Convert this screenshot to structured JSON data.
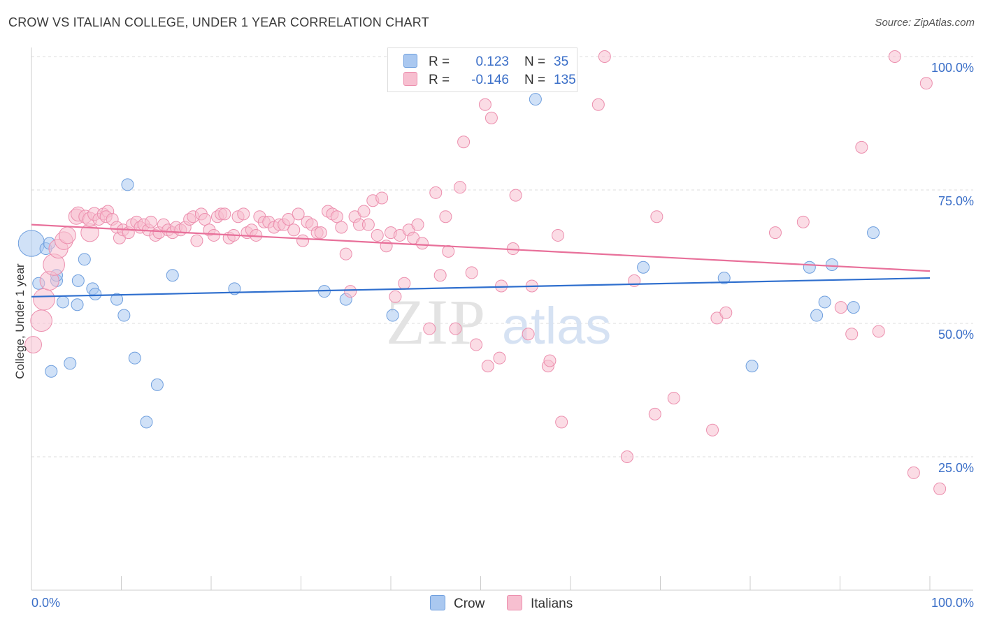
{
  "title": "CROW VS ITALIAN COLLEGE, UNDER 1 YEAR CORRELATION CHART",
  "source": "Source: ZipAtlas.com",
  "watermark": {
    "zip": "ZIP",
    "atlas": "atlas"
  },
  "legend": {
    "crow": {
      "r_label": "R =",
      "r_value": "0.123",
      "n_label": "N =",
      "n_value": "35"
    },
    "italians": {
      "r_label": "R =",
      "r_value": "-0.146",
      "n_label": "N =",
      "n_value": "135"
    }
  },
  "colors": {
    "crow_fill": "#aac8f0",
    "crow_stroke": "#6f9fde",
    "crow_line": "#2f6fce",
    "italians_fill": "#f7bfd0",
    "italians_stroke": "#ec8fae",
    "italians_line": "#e8709a",
    "axis_label": "#3b6fc8",
    "grid": "#dddddd"
  },
  "chart_data": {
    "type": "scatter",
    "title": "CROW VS ITALIAN COLLEGE, UNDER 1 YEAR CORRELATION CHART",
    "xlabel": "",
    "ylabel": "College, Under 1 year",
    "xlim": [
      0,
      100
    ],
    "ylim": [
      0,
      102
    ],
    "x_tick_labels": [
      "0.0%",
      "100.0%"
    ],
    "y_ticks": [
      25,
      50,
      75,
      100
    ],
    "y_tick_labels": [
      "25.0%",
      "50.0%",
      "75.0%",
      "100.0%"
    ],
    "grid": true,
    "legend_position": "bottom",
    "series": [
      {
        "name": "Crow",
        "trend": [
          [
            0,
            55.0
          ],
          [
            100,
            58.5
          ]
        ],
        "points": [
          [
            0,
            65,
            2.2
          ],
          [
            0.8,
            57.5,
            1
          ],
          [
            1.6,
            64,
            1
          ],
          [
            2,
            65,
            1
          ],
          [
            2.8,
            58,
            1
          ],
          [
            2.8,
            59,
            1
          ],
          [
            3.5,
            54,
            1
          ],
          [
            2.2,
            41,
            1
          ],
          [
            4.3,
            42.5,
            1
          ],
          [
            5.1,
            53.5,
            1
          ],
          [
            5.2,
            58,
            1
          ],
          [
            5.9,
            62,
            1
          ],
          [
            6.8,
            56.5,
            1
          ],
          [
            7.1,
            55.5,
            1
          ],
          [
            9.5,
            54.5,
            1
          ],
          [
            10.3,
            51.5,
            1
          ],
          [
            10.7,
            76,
            1
          ],
          [
            11.5,
            43.5,
            1
          ],
          [
            12.8,
            31.5,
            1
          ],
          [
            14,
            38.5,
            1
          ],
          [
            15.7,
            59,
            1
          ],
          [
            22.6,
            56.5,
            1
          ],
          [
            32.6,
            56,
            1
          ],
          [
            35,
            54.5,
            1
          ],
          [
            40.2,
            51.5,
            1
          ],
          [
            56.1,
            92,
            1
          ],
          [
            68.1,
            60.5,
            1
          ],
          [
            77.1,
            58.5,
            1
          ],
          [
            80.2,
            42,
            1
          ],
          [
            86.6,
            60.5,
            1
          ],
          [
            87.4,
            51.5,
            1
          ],
          [
            88.3,
            54,
            1
          ],
          [
            89.1,
            61,
            1
          ],
          [
            91.5,
            53,
            1
          ],
          [
            93.7,
            67,
            1
          ]
        ]
      },
      {
        "name": "Italians",
        "trend": [
          [
            0,
            68.5
          ],
          [
            100,
            59.8
          ]
        ],
        "points": [
          [
            0.2,
            46,
            1.4
          ],
          [
            1.1,
            50.5,
            1.8
          ],
          [
            1.4,
            54.5,
            1.8
          ],
          [
            2,
            58,
            1.6
          ],
          [
            2.5,
            61,
            1.8
          ],
          [
            3,
            64,
            1.6
          ],
          [
            3.6,
            65.5,
            1.5
          ],
          [
            4,
            66.5,
            1.4
          ],
          [
            6.5,
            67,
            1.5
          ],
          [
            5,
            70,
            1.3
          ],
          [
            5.2,
            70.5,
            1.2
          ],
          [
            6,
            70,
            1.1
          ],
          [
            6.5,
            69.5,
            1.2
          ],
          [
            7,
            70.5,
            1.1
          ],
          [
            7.5,
            69.5,
            1
          ],
          [
            8,
            70.5,
            1
          ],
          [
            8.5,
            71,
            1
          ],
          [
            8.3,
            70,
            1
          ],
          [
            9,
            69.5,
            1
          ],
          [
            9.5,
            68,
            1
          ],
          [
            9.8,
            66,
            1
          ],
          [
            10.2,
            67.5,
            1
          ],
          [
            10.8,
            67,
            1
          ],
          [
            11.2,
            68.5,
            1
          ],
          [
            11.7,
            69,
            1
          ],
          [
            12.1,
            68,
            1
          ],
          [
            12.5,
            68.5,
            1
          ],
          [
            13,
            67.5,
            1
          ],
          [
            13.3,
            69,
            1
          ],
          [
            13.8,
            66.5,
            1
          ],
          [
            14.2,
            67,
            1
          ],
          [
            14.7,
            68.5,
            1
          ],
          [
            15.2,
            67.5,
            1
          ],
          [
            15.7,
            67,
            1
          ],
          [
            16.1,
            68,
            1
          ],
          [
            16.6,
            67.5,
            1
          ],
          [
            17.1,
            68,
            1
          ],
          [
            17.6,
            69.5,
            1
          ],
          [
            18,
            70,
            1
          ],
          [
            18.4,
            65.5,
            1
          ],
          [
            18.9,
            70.5,
            1
          ],
          [
            19.3,
            69.5,
            1
          ],
          [
            19.8,
            67.5,
            1
          ],
          [
            20.3,
            66.5,
            1
          ],
          [
            20.7,
            70,
            1
          ],
          [
            21.1,
            70.5,
            1
          ],
          [
            21.5,
            70.5,
            1
          ],
          [
            22,
            66,
            1
          ],
          [
            22.5,
            66.5,
            1
          ],
          [
            23,
            70,
            1
          ],
          [
            23.6,
            70.5,
            1
          ],
          [
            24,
            67,
            1
          ],
          [
            24.5,
            67.5,
            1
          ],
          [
            25,
            66.5,
            1
          ],
          [
            25.4,
            70,
            1
          ],
          [
            25.9,
            69,
            1
          ],
          [
            26.4,
            69,
            1
          ],
          [
            27,
            68,
            1
          ],
          [
            27.6,
            68.5,
            1
          ],
          [
            28.1,
            68.5,
            1
          ],
          [
            28.6,
            69.5,
            1
          ],
          [
            29.2,
            67.5,
            1
          ],
          [
            29.7,
            70.5,
            1
          ],
          [
            30.2,
            65.5,
            1
          ],
          [
            30.7,
            69,
            1
          ],
          [
            31.2,
            68.5,
            1
          ],
          [
            31.8,
            67,
            1
          ],
          [
            32.2,
            67,
            1
          ],
          [
            33,
            71,
            1
          ],
          [
            33.5,
            70.5,
            1
          ],
          [
            34,
            70,
            1
          ],
          [
            34.5,
            68,
            1
          ],
          [
            35,
            63,
            1
          ],
          [
            35.5,
            56,
            1
          ],
          [
            36,
            70,
            1
          ],
          [
            36.5,
            68.5,
            1
          ],
          [
            37,
            71,
            1
          ],
          [
            37.5,
            68.5,
            1
          ],
          [
            38,
            73,
            1
          ],
          [
            38.5,
            66.5,
            1
          ],
          [
            39,
            73.5,
            1
          ],
          [
            39.5,
            64.5,
            1
          ],
          [
            40,
            67,
            1
          ],
          [
            40.5,
            55,
            1
          ],
          [
            41,
            66.5,
            1
          ],
          [
            41.5,
            57.5,
            1
          ],
          [
            42,
            67.5,
            1
          ],
          [
            42.5,
            66,
            1
          ],
          [
            43,
            68.5,
            1
          ],
          [
            43.5,
            65,
            1
          ],
          [
            44.3,
            49,
            1
          ],
          [
            45,
            74.5,
            1
          ],
          [
            45.5,
            59,
            1
          ],
          [
            46.1,
            70,
            1
          ],
          [
            46.4,
            63.5,
            1
          ],
          [
            47.2,
            49,
            1
          ],
          [
            47.7,
            75.5,
            1
          ],
          [
            48.1,
            84,
            1
          ],
          [
            49,
            59.5,
            1
          ],
          [
            49.5,
            46,
            1
          ],
          [
            50.5,
            91,
            1
          ],
          [
            50.8,
            42,
            1
          ],
          [
            51.2,
            88.5,
            1
          ],
          [
            52.1,
            43.5,
            1
          ],
          [
            52.3,
            57,
            1
          ],
          [
            53.6,
            64,
            1
          ],
          [
            53.9,
            74,
            1
          ],
          [
            55.3,
            48,
            1
          ],
          [
            55.7,
            57,
            1
          ],
          [
            56,
            100,
            1
          ],
          [
            57.5,
            42,
            1
          ],
          [
            57.7,
            43,
            1
          ],
          [
            58.6,
            66.5,
            1
          ],
          [
            59,
            31.5,
            1
          ],
          [
            60,
            100,
            1
          ],
          [
            63.1,
            91,
            1
          ],
          [
            63.8,
            100,
            1
          ],
          [
            67.1,
            58,
            1
          ],
          [
            66.3,
            25,
            1
          ],
          [
            69.6,
            70,
            1
          ],
          [
            69.4,
            33,
            1
          ],
          [
            71.5,
            36,
            1
          ],
          [
            75.8,
            30,
            1
          ],
          [
            76.3,
            51,
            1
          ],
          [
            77.3,
            52,
            1
          ],
          [
            82.8,
            67,
            1
          ],
          [
            85.9,
            69,
            1
          ],
          [
            91.3,
            48,
            1
          ],
          [
            92.4,
            83,
            1
          ],
          [
            90.1,
            53,
            1
          ],
          [
            94.3,
            48.5,
            1
          ],
          [
            96.1,
            100,
            1
          ],
          [
            98.2,
            22,
            1
          ],
          [
            99.6,
            95,
            1
          ],
          [
            101.1,
            19,
            1
          ]
        ]
      }
    ]
  }
}
